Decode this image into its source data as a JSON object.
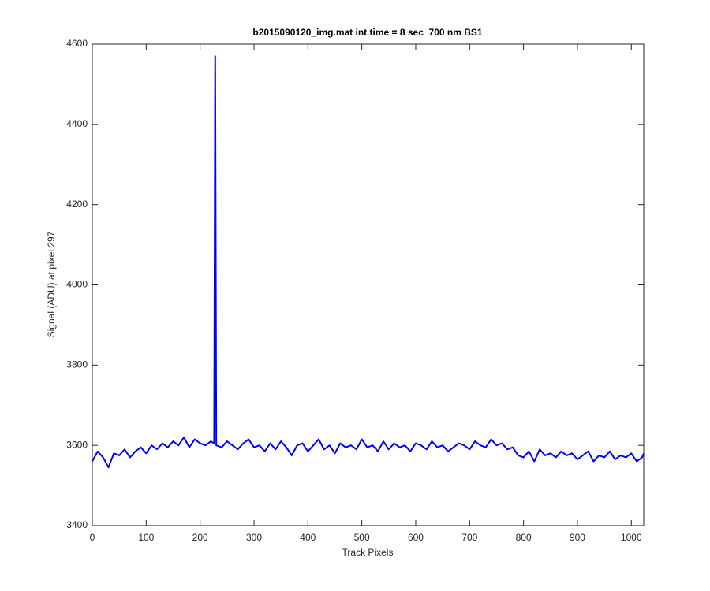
{
  "chart_data": {
    "type": "line",
    "title": "b2015090120_img.mat int time = 8 sec  700 nm BS1",
    "xlabel": "Track Pixels",
    "ylabel": "Signal (ADU) at pixel 297",
    "color": "#0000ff",
    "x": [
      0,
      10,
      20,
      30,
      40,
      50,
      60,
      70,
      80,
      90,
      100,
      110,
      120,
      130,
      140,
      150,
      160,
      170,
      180,
      190,
      200,
      210,
      220,
      226,
      228,
      230,
      240,
      250,
      260,
      270,
      280,
      290,
      300,
      310,
      320,
      330,
      340,
      350,
      360,
      370,
      380,
      390,
      400,
      410,
      420,
      430,
      440,
      450,
      460,
      470,
      480,
      490,
      500,
      510,
      520,
      530,
      540,
      550,
      560,
      570,
      580,
      590,
      600,
      610,
      620,
      630,
      640,
      650,
      660,
      670,
      680,
      690,
      700,
      710,
      720,
      730,
      740,
      750,
      760,
      770,
      780,
      790,
      800,
      810,
      820,
      830,
      840,
      850,
      860,
      870,
      880,
      890,
      900,
      910,
      920,
      930,
      940,
      950,
      960,
      970,
      980,
      990,
      1000,
      1010,
      1020,
      1023
    ],
    "values": [
      3560,
      3585,
      3570,
      3545,
      3580,
      3575,
      3590,
      3570,
      3585,
      3595,
      3580,
      3600,
      3590,
      3605,
      3595,
      3610,
      3600,
      3620,
      3595,
      3615,
      3605,
      3600,
      3610,
      3605,
      4570,
      3600,
      3595,
      3610,
      3600,
      3590,
      3605,
      3615,
      3595,
      3600,
      3585,
      3605,
      3590,
      3610,
      3595,
      3575,
      3600,
      3605,
      3585,
      3600,
      3615,
      3590,
      3600,
      3580,
      3605,
      3595,
      3600,
      3590,
      3615,
      3595,
      3600,
      3585,
      3610,
      3590,
      3605,
      3595,
      3600,
      3585,
      3605,
      3600,
      3590,
      3610,
      3595,
      3600,
      3585,
      3595,
      3605,
      3600,
      3590,
      3610,
      3600,
      3595,
      3615,
      3600,
      3605,
      3590,
      3595,
      3575,
      3570,
      3585,
      3560,
      3590,
      3575,
      3580,
      3570,
      3585,
      3575,
      3580,
      3565,
      3575,
      3585,
      3560,
      3575,
      3570,
      3585,
      3565,
      3575,
      3570,
      3580,
      3560,
      3570,
      3580
    ],
    "xlim": [
      0,
      1023
    ],
    "ylim": [
      3400,
      4600
    ],
    "xticks": [
      0,
      100,
      200,
      300,
      400,
      500,
      600,
      700,
      800,
      900,
      1000
    ],
    "yticks": [
      3400,
      3600,
      3800,
      4000,
      4200,
      4400,
      4600
    ]
  }
}
